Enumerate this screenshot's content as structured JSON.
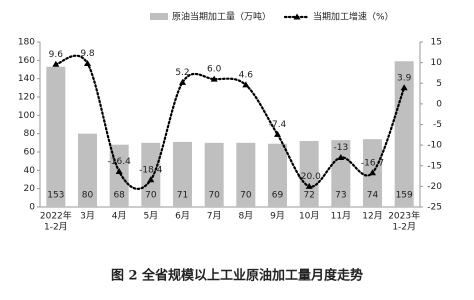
{
  "chart_data": {
    "type": "combo",
    "title": "图 2 全省规模以上工业原油加工量月度走势",
    "categories": [
      [
        "2022年",
        "1-2月"
      ],
      "3月",
      "4月",
      "5月",
      "6月",
      "7月",
      "8月",
      "9月",
      "10月",
      "11月",
      "12月",
      [
        "2023年",
        "1-2月"
      ]
    ],
    "series": [
      {
        "name": "原油当期加工量（万吨）",
        "type": "bar",
        "color": "#bfbfbf",
        "values": [
          153,
          80,
          68,
          70,
          71,
          70,
          70,
          69,
          72,
          73,
          74,
          159
        ]
      },
      {
        "name": "当期加工增速（%）",
        "type": "line",
        "axis": "y2",
        "color": "#000000",
        "values": [
          9.6,
          9.8,
          -16.4,
          -18.4,
          5.2,
          6,
          4.6,
          -7.4,
          -20,
          -13,
          -16.7,
          3.9
        ],
        "value_labels": [
          "9.6",
          "9.8",
          "-16.4",
          "-18.4",
          "5.2",
          "6.0",
          "4.6",
          "-7.4",
          "-20.0",
          "-13",
          "-16.7",
          "3.9"
        ]
      }
    ],
    "ylim": [
      0,
      180
    ],
    "yticks": [
      0,
      20,
      40,
      60,
      80,
      100,
      120,
      140,
      160,
      180
    ],
    "y2lim": [
      -25,
      15
    ],
    "y2ticks": [
      -25,
      -20,
      -15,
      -10,
      -5,
      0,
      5,
      10,
      15
    ]
  }
}
